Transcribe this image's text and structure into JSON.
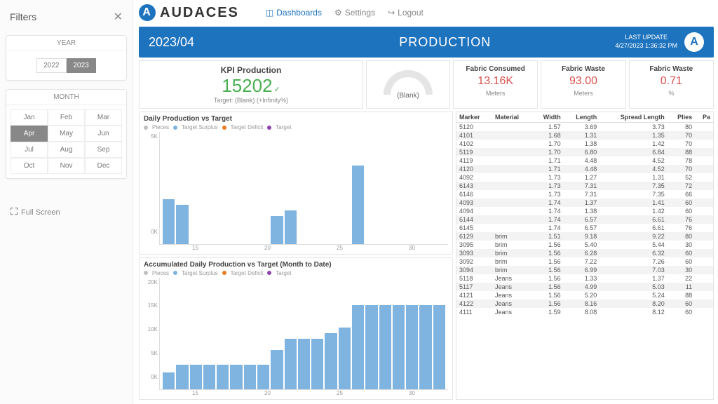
{
  "sidebar": {
    "title": "Filters",
    "year_label": "YEAR",
    "years": [
      "2022",
      "2023"
    ],
    "year_active": 1,
    "month_label": "MONTH",
    "months": [
      "Jan",
      "Feb",
      "Mar",
      "Apr",
      "May",
      "Jun",
      "Jul",
      "Aug",
      "Sep",
      "Oct",
      "Nov",
      "Dec"
    ],
    "month_active": 3,
    "fullscreen": "Full Screen"
  },
  "nav": {
    "brand": "AUDACES",
    "items": [
      "Dashboards",
      "Settings",
      "Logout"
    ]
  },
  "header": {
    "period": "2023/04",
    "title": "PRODUCTION",
    "last_update_label": "LAST UPDATE",
    "last_update": "4/27/2023 1:36:32 PM"
  },
  "kpi_main": {
    "title": "KPI Production",
    "value": "15202",
    "sub": "Target: (Blank) (+Infinity%)"
  },
  "gauge": {
    "label": "(Blank)"
  },
  "kpi_cards": [
    {
      "title": "Fabric Consumed",
      "value": "13.16K",
      "unit": "Meters"
    },
    {
      "title": "Fabric Waste",
      "value": "93.00",
      "unit": "Meters"
    },
    {
      "title": "Fabric Waste",
      "value": "0.71",
      "unit": "%"
    }
  ],
  "chart1": {
    "title": "Daily Production vs Target",
    "legend": [
      "Pieces",
      "Target Surplus",
      "Target Deficit",
      "Target"
    ],
    "legend_colors": [
      "#bfbfbf",
      "#7fb4e0",
      "#e67e22",
      "#8e44ad"
    ],
    "y_ticks": [
      "5K",
      "0K"
    ],
    "x_ticks": [
      "15",
      "20",
      "25",
      "30"
    ],
    "bars": [
      40,
      35,
      0,
      0,
      0,
      0,
      0,
      0,
      25,
      30,
      0,
      0,
      0,
      0,
      70,
      0,
      0,
      0,
      0,
      0,
      0
    ]
  },
  "chart2": {
    "title": "Accumulated Daily Production vs Target (Month to Date)",
    "legend": [
      "Pieces",
      "Target Surplus",
      "Target Deficit",
      "Target"
    ],
    "legend_colors": [
      "#bfbfbf",
      "#7fb4e0",
      "#e67e22",
      "#8e44ad"
    ],
    "y_ticks": [
      "20K",
      "15K",
      "10K",
      "5K",
      "0K"
    ],
    "x_ticks": [
      "15",
      "20",
      "25",
      "30"
    ],
    "bars": [
      15,
      22,
      22,
      22,
      22,
      22,
      22,
      22,
      35,
      45,
      45,
      45,
      50,
      55,
      75,
      75,
      75,
      75,
      75,
      75,
      75
    ]
  },
  "table": {
    "headers": [
      "Marker",
      "Material",
      "Width",
      "Length",
      "Spread Length",
      "Plies",
      "Pa"
    ],
    "rows": [
      [
        "5120",
        "",
        "1.57",
        "3.69",
        "3.73",
        "80",
        ""
      ],
      [
        "4101",
        "",
        "1.68",
        "1.31",
        "1.35",
        "70",
        ""
      ],
      [
        "4102",
        "",
        "1.70",
        "1.38",
        "1.42",
        "70",
        ""
      ],
      [
        "5119",
        "",
        "1.70",
        "6.80",
        "6.84",
        "88",
        ""
      ],
      [
        "4119",
        "",
        "1.71",
        "4.48",
        "4.52",
        "78",
        ""
      ],
      [
        "4120",
        "",
        "1.71",
        "4.48",
        "4.52",
        "70",
        ""
      ],
      [
        "4092",
        "",
        "1.73",
        "1.27",
        "1.31",
        "52",
        ""
      ],
      [
        "6143",
        "",
        "1.73",
        "7.31",
        "7.35",
        "72",
        ""
      ],
      [
        "6146",
        "",
        "1.73",
        "7.31",
        "7.35",
        "66",
        ""
      ],
      [
        "4093",
        "",
        "1.74",
        "1.37",
        "1.41",
        "60",
        ""
      ],
      [
        "4094",
        "",
        "1.74",
        "1.38",
        "1.42",
        "60",
        ""
      ],
      [
        "6144",
        "",
        "1.74",
        "6.57",
        "6.61",
        "76",
        ""
      ],
      [
        "6145",
        "",
        "1.74",
        "6.57",
        "6.61",
        "76",
        ""
      ],
      [
        "6129",
        "brim",
        "1.51",
        "9.18",
        "9.22",
        "80",
        ""
      ],
      [
        "3095",
        "brim",
        "1.56",
        "5.40",
        "5.44",
        "30",
        ""
      ],
      [
        "3093",
        "brim",
        "1.56",
        "6.28",
        "6.32",
        "60",
        ""
      ],
      [
        "3092",
        "brim",
        "1.56",
        "7.22",
        "7.26",
        "60",
        ""
      ],
      [
        "3094",
        "brim",
        "1.56",
        "6.99",
        "7.03",
        "30",
        ""
      ],
      [
        "5118",
        "Jeans",
        "1.56",
        "1.33",
        "1.37",
        "22",
        ""
      ],
      [
        "5117",
        "Jeans",
        "1.56",
        "4.99",
        "5.03",
        "11",
        ""
      ],
      [
        "4121",
        "Jeans",
        "1.56",
        "5.20",
        "5.24",
        "88",
        ""
      ],
      [
        "4122",
        "Jeans",
        "1.56",
        "8.16",
        "8.20",
        "60",
        ""
      ],
      [
        "4111",
        "Jeans",
        "1.59",
        "8.08",
        "8.12",
        "60",
        ""
      ]
    ]
  }
}
